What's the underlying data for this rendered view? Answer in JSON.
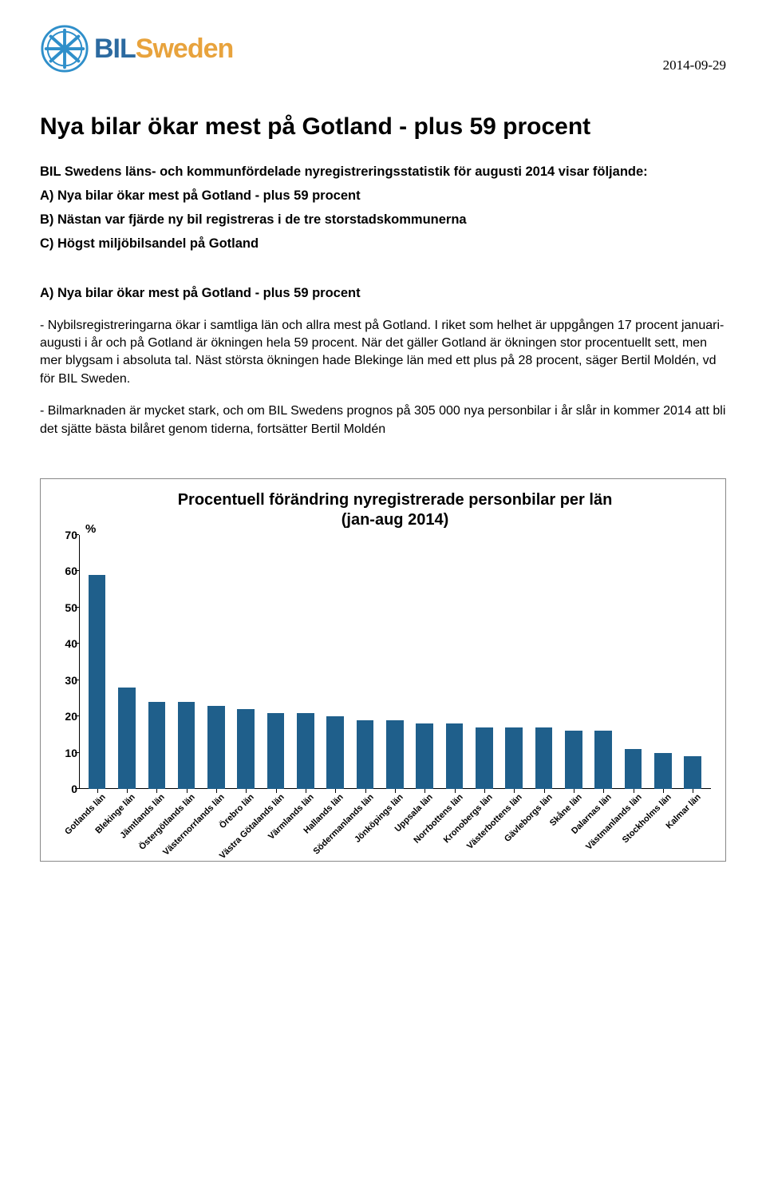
{
  "logo": {
    "bil": "BIL",
    "sweden": "Sweden",
    "wheel_color": "#2f8fca",
    "bil_color": "#2c6aa0",
    "sweden_color": "#e8a33d"
  },
  "date": "2014-09-29",
  "title": "Nya bilar ökar mest på Gotland - plus 59 procent",
  "intro": {
    "lead": "BIL Swedens läns- och kommunfördelade nyregistreringsstatistik för augusti 2014 visar följande:",
    "a": "A) Nya bilar ökar mest på Gotland - plus 59 procent",
    "b": "B) Nästan var fjärde ny bil registreras i de tre storstadskommunerna",
    "c": "C) Högst miljöbilsandel på Gotland"
  },
  "section_a_head": "A) Nya bilar ökar mest på Gotland - plus 59 procent",
  "para1": "- Nybilsregistreringarna ökar i samtliga län och allra mest på Gotland. I riket som helhet är uppgången 17 procent januari-augusti i år och på Gotland är ökningen hela 59 procent. När det gäller Gotland är ökningen stor procentuellt sett, men mer blygsam i absoluta tal. Näst största ökningen hade Blekinge län med ett plus på 28 procent, säger Bertil Moldén, vd för BIL Sweden.",
  "para2": "- Bilmarknaden är mycket stark, och om BIL Swedens prognos på 305 000 nya personbilar i år slår in kommer 2014 att bli det sjätte bästa bilåret genom tiderna, fortsätter Bertil Moldén",
  "chart": {
    "title_line1": "Procentuell förändring nyregistrerade personbilar per län",
    "title_line2": "(jan-aug 2014)",
    "pct_symbol": "%",
    "ylim_max": 70,
    "ylim_min": 0,
    "ytick_step": 10,
    "yticks": [
      0,
      10,
      20,
      30,
      40,
      50,
      60,
      70
    ],
    "bar_color": "#1f5f8b",
    "categories": [
      "Gotlands län",
      "Blekinge län",
      "Jämtlands län",
      "Östergötlands län",
      "Västernorrlands län",
      "Örebro län",
      "Västra Götalands län",
      "Värmlands län",
      "Hallands län",
      "Södermanlands län",
      "Jönköpings län",
      "Uppsala län",
      "Norrbottens län",
      "Kronobergs län",
      "Västerbottens län",
      "Gävleborgs län",
      "Skåne län",
      "Dalarnas län",
      "Västmanlands län",
      "Stockholms län",
      "Kalmar län"
    ],
    "values": [
      59,
      28,
      24,
      24,
      23,
      22,
      21,
      21,
      20,
      19,
      19,
      18,
      18,
      17,
      17,
      17,
      16,
      16,
      11,
      10,
      9
    ]
  }
}
